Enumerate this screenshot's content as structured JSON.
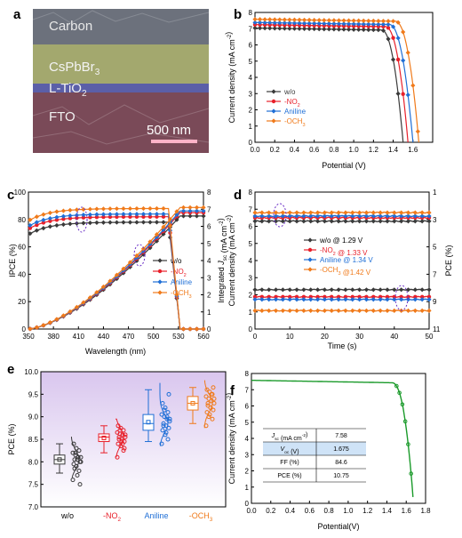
{
  "panel_letters": {
    "a": "a",
    "b": "b",
    "c": "c",
    "d": "d",
    "e": "e",
    "f": "f"
  },
  "colors": {
    "wo": "#3a3a3a",
    "no2": "#e8202a",
    "aniline": "#1f6fd6",
    "och3": "#f07a1a",
    "pce_box": "#7a2a6a",
    "jv_green": "#1a9a2a"
  },
  "panel_a": {
    "layers": [
      "Carbon",
      "CsPbBr3",
      "L-TiO2",
      "FTO"
    ],
    "scale_bar": "500 nm"
  },
  "chart_data": [
    {
      "id": "b",
      "type": "line",
      "xlabel": "Potential (V)",
      "ylabel": "Current density (mA cm-2)",
      "xlim": [
        0.0,
        1.8
      ],
      "ylim": [
        0,
        8
      ],
      "xticks": [
        "0.0",
        "0.2",
        "0.4",
        "0.6",
        "0.8",
        "1.0",
        "1.2",
        "1.4",
        "1.6"
      ],
      "yticks": [
        "0",
        "1",
        "2",
        "3",
        "4",
        "5",
        "6",
        "7",
        "8"
      ],
      "legend": "center-left",
      "series": [
        {
          "name": "w/o",
          "key": "wo",
          "jsc": 7.04,
          "voc": 1.5,
          "knee": 1.28
        },
        {
          "name": "-NO2",
          "key": "no2",
          "jsc": 7.25,
          "voc": 1.55,
          "knee": 1.32
        },
        {
          "name": "Aniline",
          "key": "aniline",
          "jsc": 7.38,
          "voc": 1.6,
          "knee": 1.36
        },
        {
          "name": "-OCH3",
          "key": "och3",
          "jsc": 7.58,
          "voc": 1.66,
          "knee": 1.42
        }
      ]
    },
    {
      "id": "c",
      "type": "line",
      "xlabel": "Wavelength (nm)",
      "ylabel": "IPCE (%)",
      "y2label": "Integrated Jsc (mA cm-2)",
      "xlim": [
        350,
        560
      ],
      "ylim": [
        0,
        100
      ],
      "y2lim": [
        0,
        8
      ],
      "xticks": [
        "350",
        "380",
        "410",
        "440",
        "470",
        "500",
        "530",
        "560"
      ],
      "yticks": [
        "0",
        "20",
        "40",
        "60",
        "80",
        "100"
      ],
      "y2ticks": [
        "0",
        "1",
        "2",
        "3",
        "4",
        "5",
        "6",
        "7",
        "8"
      ],
      "legend": "center-right",
      "series": [
        {
          "name": "w/o",
          "key": "wo",
          "plateau": 78,
          "jsc": 6.6
        },
        {
          "name": "-NO2",
          "key": "no2",
          "plateau": 82,
          "jsc": 6.8
        },
        {
          "name": "Aniline",
          "key": "aniline",
          "plateau": 84,
          "jsc": 6.9
        },
        {
          "name": "-OCH3",
          "key": "och3",
          "plateau": 88,
          "jsc": 7.1
        }
      ]
    },
    {
      "id": "d",
      "type": "line",
      "xlabel": "Time (s)",
      "ylabel": "Current density (mA cm-2)",
      "y2label": "PCE (%)",
      "xlim": [
        0,
        50
      ],
      "ylim": [
        0,
        8
      ],
      "y2lim": [
        1,
        11
      ],
      "xticks": [
        "0",
        "10",
        "20",
        "30",
        "40",
        "50"
      ],
      "yticks": [
        "0",
        "1",
        "2",
        "3",
        "4",
        "5",
        "6",
        "7",
        "8"
      ],
      "y2ticks": [
        "1",
        "3",
        "5",
        "7",
        "9",
        "11"
      ],
      "legend": "center",
      "series": [
        {
          "name": "w/o @ 1.29 V",
          "key": "wo",
          "j": 6.3,
          "pce": 8.13
        },
        {
          "name": "-NO2 @ 1.33 V",
          "key": "no2",
          "j": 6.5,
          "pce": 8.65
        },
        {
          "name": "Aniline @ 1.34 V",
          "key": "aniline",
          "j": 6.6,
          "pce": 8.84
        },
        {
          "name": "-OCH3 @1.42 V",
          "key": "och3",
          "j": 6.8,
          "pce": 9.66
        }
      ]
    },
    {
      "id": "e",
      "type": "box",
      "ylabel": "PCE (%)",
      "ylim": [
        7.0,
        10.0
      ],
      "yticks": [
        "7.0",
        "7.5",
        "8.0",
        "8.5",
        "9.0",
        "9.5",
        "10.0"
      ],
      "categories": [
        "w/o",
        "-NO2",
        "Aniline",
        "-OCH3"
      ],
      "boxes": [
        {
          "key": "wo",
          "q1": 7.95,
          "median": 8.05,
          "q3": 8.15,
          "mean": 8.05,
          "wlo": 7.75,
          "whi": 8.4,
          "points": [
            7.6,
            7.8,
            7.9,
            7.95,
            8.0,
            8.05,
            8.05,
            8.1,
            8.1,
            8.15,
            8.2,
            8.25,
            8.3,
            8.4,
            7.5,
            7.7,
            7.85,
            8.0,
            8.1,
            8.2
          ]
        },
        {
          "key": "no2",
          "q1": 8.45,
          "median": 8.55,
          "q3": 8.62,
          "mean": 8.53,
          "wlo": 8.2,
          "whi": 8.8,
          "points": [
            8.1,
            8.25,
            8.35,
            8.4,
            8.45,
            8.5,
            8.5,
            8.55,
            8.6,
            8.62,
            8.65,
            8.7,
            8.75,
            8.8,
            8.3,
            8.45,
            8.55,
            8.6,
            8.4,
            8.7
          ]
        },
        {
          "key": "aniline",
          "q1": 8.7,
          "median": 8.85,
          "q3": 9.05,
          "mean": 8.88,
          "wlo": 8.45,
          "whi": 9.6,
          "points": [
            8.4,
            8.5,
            8.6,
            8.7,
            8.75,
            8.8,
            8.85,
            8.9,
            8.95,
            9.0,
            9.05,
            9.1,
            9.2,
            9.3,
            9.5,
            8.65,
            8.8,
            8.95,
            9.0,
            9.15
          ]
        },
        {
          "key": "och3",
          "q1": 9.15,
          "median": 9.3,
          "q3": 9.45,
          "mean": 9.3,
          "wlo": 8.85,
          "whi": 9.65,
          "points": [
            8.8,
            8.95,
            9.05,
            9.1,
            9.15,
            9.2,
            9.25,
            9.3,
            9.35,
            9.4,
            9.45,
            9.5,
            9.55,
            9.6,
            9.65,
            9.2,
            9.3,
            9.4,
            9.5,
            9.0
          ]
        }
      ]
    },
    {
      "id": "f",
      "type": "line",
      "xlabel": "Potential(V)",
      "ylabel": "Current density (mA cm-2)",
      "xlim": [
        0.0,
        1.8
      ],
      "ylim": [
        0,
        8
      ],
      "xticks": [
        "0.0",
        "0.2",
        "0.4",
        "0.6",
        "0.8",
        "1.0",
        "1.2",
        "1.4",
        "1.6",
        "1.8"
      ],
      "yticks": [
        "0",
        "1",
        "2",
        "3",
        "4",
        "5",
        "6",
        "7",
        "8"
      ],
      "series": [
        {
          "key": "jv_green",
          "jsc": 7.58,
          "voc": 1.675,
          "knee": 1.45
        }
      ],
      "table": [
        {
          "label": "Jsc (mA cm-2)",
          "value": "7.58"
        },
        {
          "label": "Voc (V)",
          "value": "1.675"
        },
        {
          "label": "FF (%)",
          "value": "84.6"
        },
        {
          "label": "PCE (%)",
          "value": "10.75"
        }
      ]
    }
  ]
}
